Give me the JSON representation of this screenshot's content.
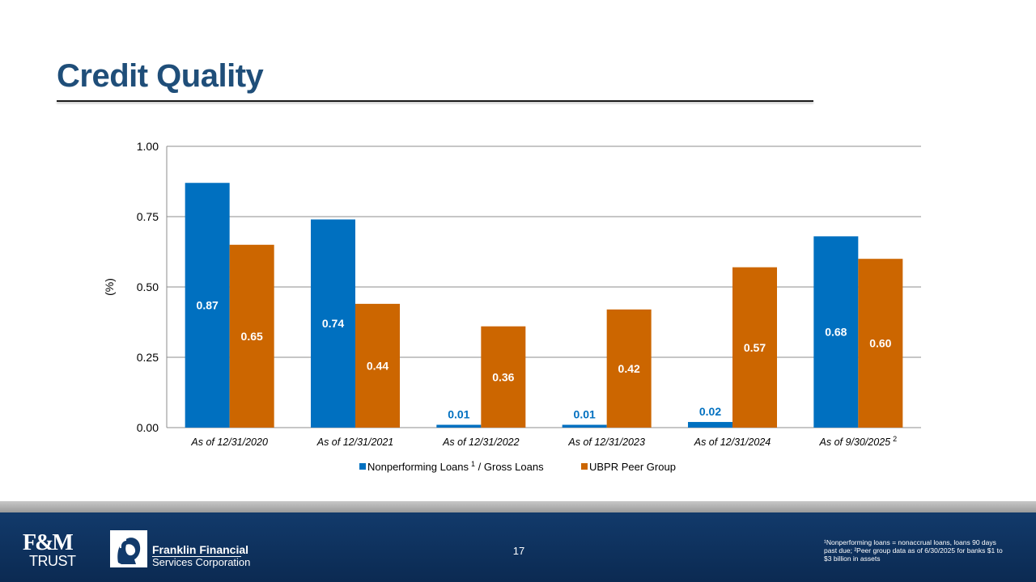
{
  "slide": {
    "title": "Credit Quality",
    "page_number": "17",
    "footnote": "¹Nonperforming loans = nonaccrual loans, loans 90 days past due; ²Peer group data as of 6/30/2025 for banks $1 to $3 billion in assets"
  },
  "logos": {
    "fm_top": "F&M",
    "fm_bottom": "TRUST",
    "ff_line1": "Franklin Financial",
    "ff_line2": "Services Corporation"
  },
  "chart_data": {
    "type": "bar",
    "title": "",
    "ylabel": "(%)",
    "xlabel": "",
    "ylim": [
      0,
      1.0
    ],
    "yticks": [
      "0.00",
      "0.25",
      "0.50",
      "0.75",
      "1.00"
    ],
    "ytick_values": [
      0,
      0.25,
      0.5,
      0.75,
      1.0
    ],
    "grid": true,
    "legend_position": "bottom",
    "categories": [
      "As of 12/31/2020",
      "As of 12/31/2021",
      "As of 12/31/2022",
      "As of 12/31/2023",
      "As of 12/31/2024",
      "As of 9/30/2025"
    ],
    "category_superscripts": [
      "",
      "",
      "",
      "",
      "",
      "2"
    ],
    "series": [
      {
        "name": "Nonperforming Loans",
        "name_superscript": "1",
        "name_suffix": " / Gross Loans",
        "color": "#0070c0",
        "values": [
          0.87,
          0.74,
          0.01,
          0.01,
          0.02,
          0.68
        ],
        "labels": [
          "0.87",
          "0.74",
          "0.01",
          "0.01",
          "0.02",
          "0.68"
        ]
      },
      {
        "name": "UBPR Peer Group",
        "name_superscript": "",
        "name_suffix": "",
        "color": "#cc6600",
        "values": [
          0.65,
          0.44,
          0.36,
          0.42,
          0.57,
          0.6
        ],
        "labels": [
          "0.65",
          "0.44",
          "0.36",
          "0.42",
          "0.57",
          "0.60"
        ]
      }
    ]
  }
}
